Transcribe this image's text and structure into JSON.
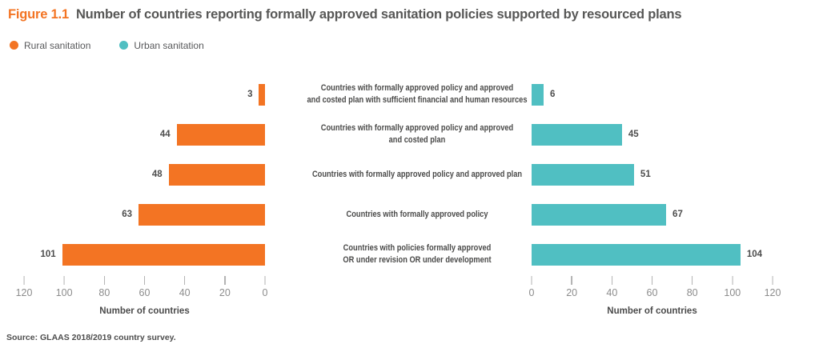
{
  "figure": {
    "label": "Figure 1.1",
    "title": "Number of countries reporting formally approved sanitation policies supported by resourced plans"
  },
  "legend": {
    "items": [
      {
        "id": "rural",
        "label": "Rural sanitation",
        "color": "#F37423"
      },
      {
        "id": "urban",
        "label": "Urban sanitation",
        "color": "#50BFC2"
      }
    ]
  },
  "chart_data": {
    "type": "bar",
    "orientation": "horizontal",
    "layout": "diverging-butterfly",
    "title": "Number of countries reporting formally approved sanitation policies supported by resourced plans",
    "categories": [
      "Countries with formally approved policy and approved\nand costed plan with sufficient financial and human resources",
      "Countries with formally approved policy and approved\nand costed plan",
      "Countries with formally approved policy and approved plan",
      "Countries with formally approved policy",
      "Countries with policies formally approved\nOR under revision OR under development"
    ],
    "series": [
      {
        "name": "Rural sanitation",
        "side": "left",
        "color": "#F37423",
        "values": [
          3,
          44,
          48,
          63,
          101
        ]
      },
      {
        "name": "Urban sanitation",
        "side": "right",
        "color": "#50BFC2",
        "values": [
          6,
          45,
          51,
          67,
          104
        ]
      }
    ],
    "axis": {
      "label": "Number of countries",
      "ticks": [
        0,
        20,
        40,
        60,
        80,
        100,
        120
      ],
      "min": 0,
      "max": 120,
      "left_axis_reversed": true,
      "grid": false
    },
    "legend_position": "top-left"
  },
  "source": "Source: GLAAS 2018/2019 country survey."
}
